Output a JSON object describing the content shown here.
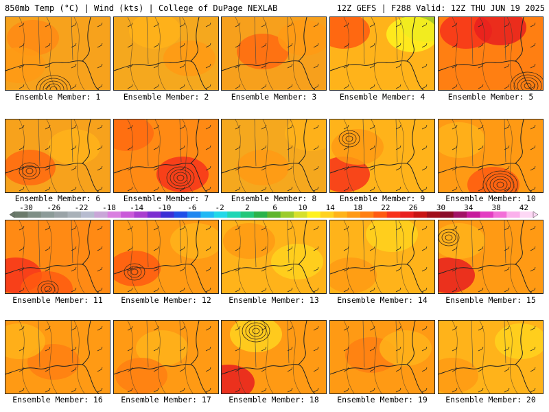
{
  "header": {
    "left": "850mb Temp (°C) | Wind (kts) | College of DuPage NEXLAB",
    "right": "12Z GEFS | F288 Valid: 12Z THU JUN 19 2025"
  },
  "colorbar": {
    "labels": [
      "-30",
      "-26",
      "-22",
      "-18",
      "-14",
      "-10",
      "-6",
      "-2",
      "2",
      "6",
      "10",
      "14",
      "18",
      "22",
      "26",
      "30",
      "34",
      "38",
      "42"
    ],
    "colors": [
      "#6b7a6b",
      "#7f8f86",
      "#8c9b99",
      "#9aa3a7",
      "#a9b1b8",
      "#b7bcd0",
      "#c9a6d8",
      "#d97fe0",
      "#c95ad9",
      "#a93fcf",
      "#7b2fd0",
      "#3a2fd5",
      "#1f4fe8",
      "#1f86f0",
      "#20b8f5",
      "#22d8e8",
      "#1fd6b5",
      "#22c77a",
      "#2ab34a",
      "#5fb52c",
      "#9bcc2a",
      "#d6e02a",
      "#fff21f",
      "#ffd21f",
      "#ffb31a",
      "#ff9a14",
      "#ff7f12",
      "#ff5a10",
      "#f7321a",
      "#e81f1f",
      "#c81414",
      "#a00f1a",
      "#8a0c2a",
      "#a11266",
      "#c71a9c",
      "#e33ec2",
      "#f36fd8",
      "#fbb0ec",
      "#fdd8f5"
    ]
  },
  "panels": [
    {
      "caption": "Ensemble Member: 1"
    },
    {
      "caption": "Ensemble Member: 2"
    },
    {
      "caption": "Ensemble Member: 3"
    },
    {
      "caption": "Ensemble Member: 4"
    },
    {
      "caption": "Ensemble Member: 5"
    },
    {
      "caption": "Ensemble Member: 6"
    },
    {
      "caption": "Ensemble Member: 7"
    },
    {
      "caption": "Ensemble Member: 8"
    },
    {
      "caption": "Ensemble Member: 9"
    },
    {
      "caption": "Ensemble Member: 10"
    },
    {
      "caption": "Ensemble Member: 11"
    },
    {
      "caption": "Ensemble Member: 12"
    },
    {
      "caption": "Ensemble Member: 13"
    },
    {
      "caption": "Ensemble Member: 14"
    },
    {
      "caption": "Ensemble Member: 15"
    },
    {
      "caption": "Ensemble Member: 16"
    },
    {
      "caption": "Ensemble Member: 17"
    },
    {
      "caption": "Ensemble Member: 18"
    },
    {
      "caption": "Ensemble Member: 19"
    },
    {
      "caption": "Ensemble Member: 20"
    }
  ]
}
